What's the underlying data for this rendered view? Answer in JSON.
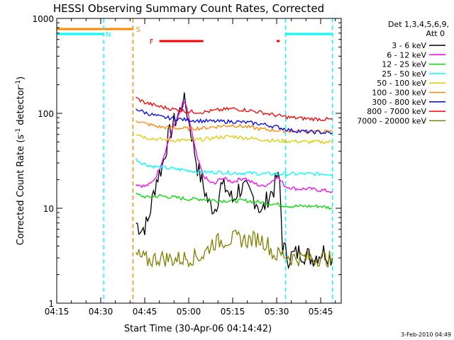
{
  "chart_data": {
    "type": "line",
    "title": "HESSI Observing Summary Count Rates, Corrected",
    "xlabel": "Start Time (30-Apr-06 04:14:42)",
    "ylabel_main": "Corrected Count Rate (s",
    "ylabel_sup1": "-1",
    "ylabel_mid": " detector",
    "ylabel_sup2": "-1",
    "ylabel_end": ")",
    "y_scale": "log",
    "ylim": [
      1,
      1000
    ],
    "xlim": [
      "04:15",
      "05:52"
    ],
    "x_ticks": [
      "04:15",
      "04:30",
      "04:45",
      "05:00",
      "05:15",
      "05:30",
      "05:45"
    ],
    "y_ticks": [
      "1",
      "10",
      "100",
      "1000"
    ],
    "legend_header": [
      "Det 1,3,4,5,6,9,",
      "Att 0"
    ],
    "legend_position": "right",
    "date_stamp": "3-Feb-2010 04:49",
    "series": [
      {
        "name": "3 - 6 keV",
        "color": "#000000",
        "points": [
          [
            "04:42",
            7
          ],
          [
            "04:44",
            6
          ],
          [
            "04:46",
            7
          ],
          [
            "04:47",
            10
          ],
          [
            "04:49",
            20
          ],
          [
            "04:51",
            28
          ],
          [
            "04:53",
            55
          ],
          [
            "04:55",
            80
          ],
          [
            "04:57",
            105
          ],
          [
            "04:58",
            140
          ],
          [
            "04:59",
            120
          ],
          [
            "05:00",
            85
          ],
          [
            "05:01",
            60
          ],
          [
            "05:02",
            40
          ],
          [
            "05:03",
            27
          ],
          [
            "05:05",
            17
          ],
          [
            "05:07",
            11
          ],
          [
            "05:09",
            10
          ],
          [
            "05:11",
            17
          ],
          [
            "05:13",
            16
          ],
          [
            "05:15",
            12
          ],
          [
            "05:17",
            16
          ],
          [
            "05:19",
            16
          ],
          [
            "05:21",
            14
          ],
          [
            "05:23",
            12
          ],
          [
            "05:25",
            9
          ],
          [
            "05:27",
            13
          ],
          [
            "05:29",
            16
          ],
          [
            "05:30",
            21
          ],
          [
            "05:31",
            19
          ],
          [
            "05:32",
            4
          ],
          [
            "05:34",
            3
          ],
          [
            "05:38",
            3.5
          ],
          [
            "05:42",
            3
          ],
          [
            "05:46",
            3.5
          ],
          [
            "05:49",
            3
          ]
        ]
      },
      {
        "name": "6 - 12 keV",
        "color": "#ff00ff",
        "points": [
          [
            "04:42",
            18
          ],
          [
            "04:45",
            17
          ],
          [
            "04:47",
            18
          ],
          [
            "04:49",
            22
          ],
          [
            "04:51",
            32
          ],
          [
            "04:53",
            50
          ],
          [
            "04:55",
            75
          ],
          [
            "04:57",
            100
          ],
          [
            "04:58",
            130
          ],
          [
            "04:59",
            125
          ],
          [
            "05:00",
            90
          ],
          [
            "05:01",
            65
          ],
          [
            "05:02",
            45
          ],
          [
            "05:03",
            33
          ],
          [
            "05:05",
            22
          ],
          [
            "05:07",
            19
          ],
          [
            "05:09",
            18
          ],
          [
            "05:11",
            21
          ],
          [
            "05:13",
            20
          ],
          [
            "05:15",
            19
          ],
          [
            "05:17",
            20
          ],
          [
            "05:19",
            21
          ],
          [
            "05:21",
            19
          ],
          [
            "05:23",
            18
          ],
          [
            "05:25",
            17
          ],
          [
            "05:27",
            18
          ],
          [
            "05:29",
            20
          ],
          [
            "05:30",
            22
          ],
          [
            "05:31",
            20
          ],
          [
            "05:33",
            17
          ],
          [
            "05:37",
            16
          ],
          [
            "05:41",
            16
          ],
          [
            "05:45",
            15.5
          ],
          [
            "05:49",
            15
          ]
        ]
      },
      {
        "name": "12 - 25 keV",
        "color": "#00dd00",
        "points": [
          [
            "04:42",
            14
          ],
          [
            "04:46",
            13
          ],
          [
            "04:50",
            13.5
          ],
          [
            "04:55",
            13
          ],
          [
            "05:00",
            12.5
          ],
          [
            "05:05",
            12.5
          ],
          [
            "05:10",
            12
          ],
          [
            "05:15",
            12
          ],
          [
            "05:20",
            12
          ],
          [
            "05:25",
            11.5
          ],
          [
            "05:30",
            11
          ],
          [
            "05:35",
            10.5
          ],
          [
            "05:40",
            10.5
          ],
          [
            "05:45",
            10.5
          ],
          [
            "05:49",
            10
          ]
        ]
      },
      {
        "name": "25 - 50 keV",
        "color": "#00ffff",
        "points": [
          [
            "04:42",
            33
          ],
          [
            "04:44",
            30
          ],
          [
            "04:47",
            28
          ],
          [
            "04:50",
            27
          ],
          [
            "04:55",
            26
          ],
          [
            "05:00",
            25
          ],
          [
            "05:05",
            24
          ],
          [
            "05:10",
            24
          ],
          [
            "05:15",
            23.5
          ],
          [
            "05:20",
            23.5
          ],
          [
            "05:25",
            23
          ],
          [
            "05:30",
            23
          ],
          [
            "05:35",
            23
          ],
          [
            "05:40",
            23
          ],
          [
            "05:45",
            23
          ],
          [
            "05:49",
            23
          ]
        ]
      },
      {
        "name": "50 - 100 keV",
        "color": "#ddcc00",
        "points": [
          [
            "04:42",
            62
          ],
          [
            "04:45",
            56
          ],
          [
            "04:50",
            53
          ],
          [
            "04:55",
            52
          ],
          [
            "05:00",
            52
          ],
          [
            "05:05",
            53
          ],
          [
            "05:10",
            56
          ],
          [
            "05:15",
            57
          ],
          [
            "05:20",
            55
          ],
          [
            "05:25",
            53
          ],
          [
            "05:30",
            51
          ],
          [
            "05:35",
            51
          ],
          [
            "05:40",
            50
          ],
          [
            "05:45",
            50
          ],
          [
            "05:49",
            50
          ]
        ]
      },
      {
        "name": "100 - 300 keV",
        "color": "#ff8800",
        "points": [
          [
            "04:42",
            85
          ],
          [
            "04:45",
            78
          ],
          [
            "04:50",
            72
          ],
          [
            "04:55",
            70
          ],
          [
            "05:00",
            69
          ],
          [
            "05:05",
            70
          ],
          [
            "05:10",
            73
          ],
          [
            "05:15",
            75
          ],
          [
            "05:20",
            72
          ],
          [
            "05:25",
            68
          ],
          [
            "05:30",
            66
          ],
          [
            "05:35",
            65
          ],
          [
            "05:40",
            65
          ],
          [
            "05:45",
            64
          ],
          [
            "05:49",
            64
          ]
        ]
      },
      {
        "name": "300 - 800 keV",
        "color": "#0000ff",
        "points": [
          [
            "04:42",
            112
          ],
          [
            "04:45",
            102
          ],
          [
            "04:50",
            92
          ],
          [
            "04:55",
            88
          ],
          [
            "05:00",
            85
          ],
          [
            "05:05",
            83
          ],
          [
            "05:10",
            82
          ],
          [
            "05:15",
            82
          ],
          [
            "05:20",
            80
          ],
          [
            "05:25",
            77
          ],
          [
            "05:30",
            72
          ],
          [
            "05:35",
            66
          ],
          [
            "05:40",
            64
          ],
          [
            "05:45",
            63
          ],
          [
            "05:49",
            62
          ]
        ]
      },
      {
        "name": "800 - 7000 keV",
        "color": "#ff0000",
        "points": [
          [
            "04:42",
            145
          ],
          [
            "04:45",
            130
          ],
          [
            "04:50",
            118
          ],
          [
            "04:55",
            110
          ],
          [
            "05:00",
            104
          ],
          [
            "05:05",
            103
          ],
          [
            "05:10",
            108
          ],
          [
            "05:15",
            112
          ],
          [
            "05:20",
            108
          ],
          [
            "05:25",
            102
          ],
          [
            "05:30",
            95
          ],
          [
            "05:35",
            90
          ],
          [
            "05:40",
            88
          ],
          [
            "05:45",
            87
          ],
          [
            "05:49",
            86
          ]
        ]
      },
      {
        "name": "7000 - 20000 keV",
        "color": "#808000",
        "points": [
          [
            "04:42",
            3.2
          ],
          [
            "04:44",
            3.0
          ],
          [
            "04:46",
            2.8
          ],
          [
            "04:50",
            3.0
          ],
          [
            "04:55",
            2.9
          ],
          [
            "05:00",
            3.0
          ],
          [
            "05:05",
            3.2
          ],
          [
            "05:08",
            4.3
          ],
          [
            "05:12",
            4.6
          ],
          [
            "05:16",
            4.8
          ],
          [
            "05:20",
            4.6
          ],
          [
            "05:24",
            4.8
          ],
          [
            "05:27",
            4.2
          ],
          [
            "05:29",
            3.2
          ],
          [
            "05:32",
            3.3
          ],
          [
            "05:35",
            3.0
          ],
          [
            "05:40",
            3.0
          ],
          [
            "05:45",
            3.0
          ],
          [
            "05:49",
            2.9
          ]
        ]
      }
    ],
    "flags": [
      {
        "label": "",
        "color": "#00ffff",
        "note": "night",
        "ranges": [
          [
            "04:15",
            "04:31"
          ],
          [
            "05:33",
            "05:49"
          ]
        ]
      },
      {
        "label": "S",
        "color": "#ff8800",
        "ranges": [
          [
            "04:15",
            "04:41"
          ]
        ]
      },
      {
        "label": "N",
        "color": "#00ffff",
        "ranges": []
      },
      {
        "label": "F",
        "color": "#ff0000",
        "ranges": [
          [
            "04:50",
            "05:05"
          ],
          [
            "05:30",
            "05:31"
          ]
        ]
      }
    ],
    "vertical_markers": [
      {
        "time": "04:31",
        "color": "#00ffff"
      },
      {
        "time": "04:41",
        "color": "#ff8800"
      },
      {
        "time": "05:33",
        "color": "#00ffff"
      },
      {
        "time": "05:49",
        "color": "#00ffff"
      }
    ]
  }
}
